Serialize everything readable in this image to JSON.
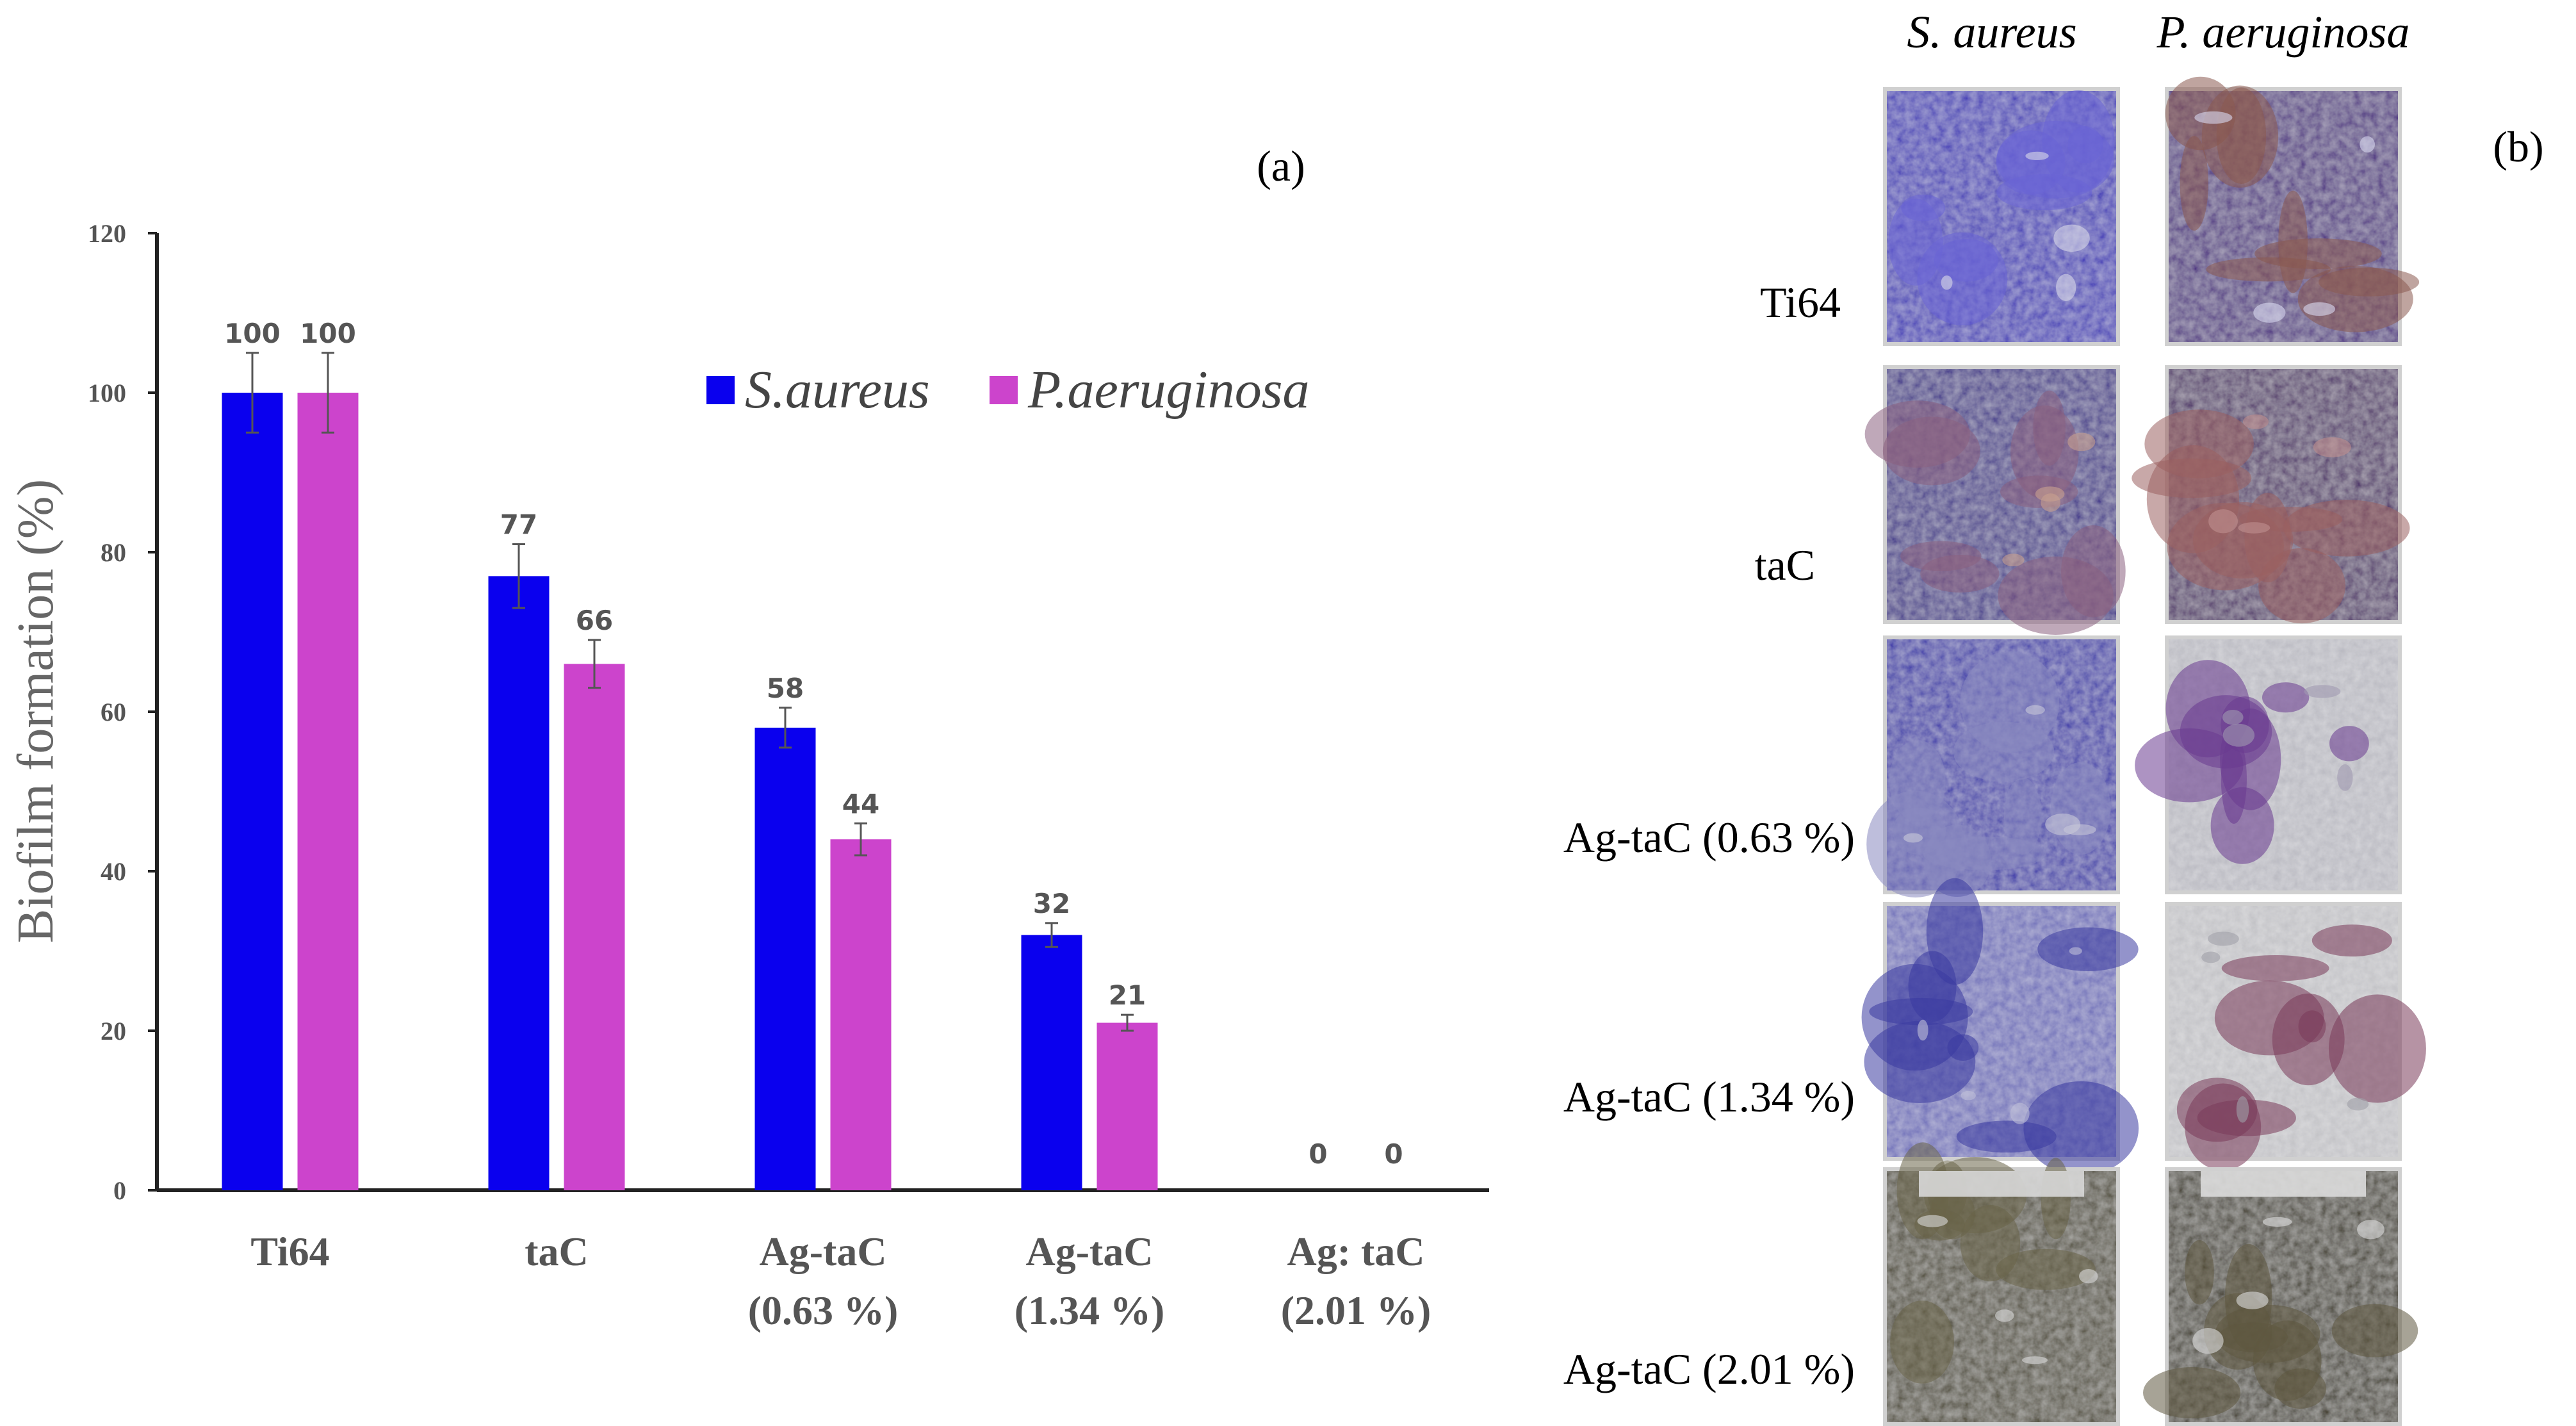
{
  "chart_data": {
    "type": "bar",
    "panel_label": "(a)",
    "ylabel": "Biofilm formation (%)",
    "ylim": [
      0,
      120
    ],
    "yticks": [
      0,
      20,
      40,
      60,
      80,
      100,
      120
    ],
    "categories": [
      [
        "Ti64"
      ],
      [
        "taC"
      ],
      [
        "Ag-taC",
        "(0.63 %)"
      ],
      [
        "Ag-taC",
        "(1.34 %)"
      ],
      [
        "Ag: taC",
        "(2.01 %)"
      ]
    ],
    "series": [
      {
        "name": "S.aureus",
        "color": "#0a00ee",
        "values": [
          100,
          77,
          58,
          32,
          0
        ],
        "errors": [
          5,
          4,
          2.5,
          1.5,
          0
        ]
      },
      {
        "name": "P.aeruginosa",
        "color": "#cc44cc",
        "values": [
          100,
          66,
          44,
          21,
          0
        ],
        "errors": [
          5,
          3,
          2,
          1,
          0
        ]
      }
    ],
    "legend_position": "top-right"
  },
  "images_panel": {
    "panel_label": "(b)",
    "column_titles": [
      "S. aureus",
      "P. aeruginosa"
    ],
    "rows": [
      {
        "label": "Ti64",
        "tiles": [
          {
            "base": "#3a30b5",
            "secondary": "#6a64d6",
            "spots": "#d8d8e8"
          },
          {
            "base": "#4a2a80",
            "secondary": "#8a5a50",
            "spots": "#d8d8f0"
          }
        ]
      },
      {
        "label": "taC",
        "tiles": [
          {
            "base": "#3a2c88",
            "secondary": "#8a6080",
            "spots": "#c8a090"
          },
          {
            "base": "#4a2a66",
            "secondary": "#9a6060",
            "spots": "#c09090"
          }
        ]
      },
      {
        "label": "Ag-taC (0.63 %)",
        "tiles": [
          {
            "base": "#3530a8",
            "secondary": "#8888c0",
            "spots": "#c8c8d8"
          },
          {
            "base": "#b8b8c0",
            "secondary": "#6a3a90",
            "spots": "#a09ab0"
          }
        ]
      },
      {
        "label": "Ag-taC (1.34 %)",
        "tiles": [
          {
            "base": "#6a6ab8",
            "secondary": "#3a3aa0",
            "spots": "#c0c0d8"
          },
          {
            "base": "#c0c0c4",
            "secondary": "#7a3a5a",
            "spots": "#a0a0a8"
          }
        ]
      },
      {
        "label": "Ag-taC (2.01 %)",
        "tiles": [
          {
            "base": "#4a4630",
            "secondary": "#6a6448",
            "spots": "#d8d8d8"
          },
          {
            "base": "#3e3a28",
            "secondary": "#5e5840",
            "spots": "#dcdcdc"
          }
        ]
      }
    ]
  }
}
